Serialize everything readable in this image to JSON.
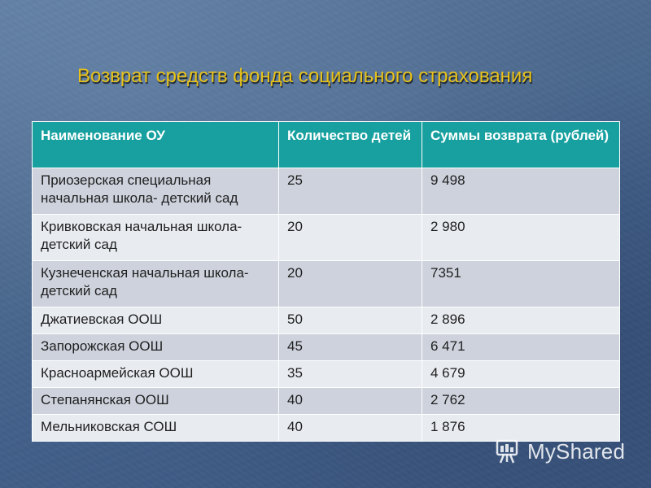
{
  "slide": {
    "title": "Возврат средств фонда социального страхования"
  },
  "table": {
    "headers": [
      "Наименование ОУ",
      "Количество детей",
      "Суммы возврата (рублей)"
    ],
    "rows": [
      [
        "Приозерская специальная начальная школа- детский сад",
        "25",
        "9 498"
      ],
      [
        "Кривковская начальная школа- детский сад",
        "20",
        "2 980"
      ],
      [
        "Кузнеченская начальная школа- детский сад",
        "20",
        "7351"
      ],
      [
        "Джатиевская ООШ",
        "50",
        "2 896"
      ],
      [
        "Запорожская ООШ",
        "45",
        "6 471"
      ],
      [
        "Красноармейская ООШ",
        "35",
        "4 679"
      ],
      [
        "Степанянская ООШ",
        "40",
        "2 762"
      ],
      [
        "Мельниковская СОШ",
        "40",
        "1 876"
      ]
    ]
  },
  "watermark": {
    "text": "MyShared",
    "icon": "presentation-board-icon"
  },
  "colors": {
    "title": "#e8c21a",
    "header_bg": "#18a0a0",
    "row_odd": "#cdd2dc",
    "row_even": "#e8ebf0",
    "background": "#4d6a8f"
  }
}
